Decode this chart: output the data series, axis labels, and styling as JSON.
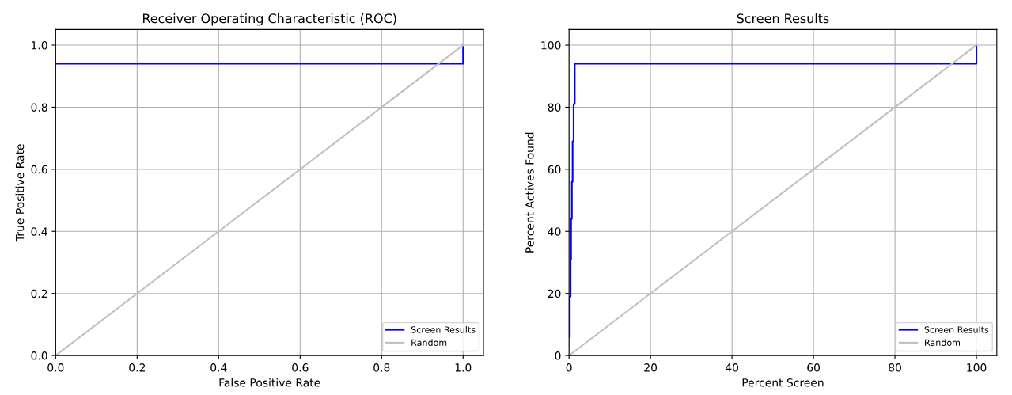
{
  "chart_data": [
    {
      "type": "step",
      "title": "Receiver Operating Characteristic (ROC)",
      "xlabel": "False Positive Rate",
      "ylabel": "True Positive Rate",
      "xlim": [
        0,
        1.05
      ],
      "ylim": [
        0,
        1.05
      ],
      "xticks": [
        {
          "value": 0,
          "label": "0.0"
        },
        0.2,
        0.4,
        0.6,
        0.8,
        {
          "value": 1,
          "label": "1.0"
        }
      ],
      "yticks": [
        {
          "value": 0,
          "label": "0.0"
        },
        0.2,
        0.4,
        0.6,
        0.8,
        {
          "value": 1,
          "label": "1.0"
        }
      ],
      "grid": true,
      "legend": "bottom right",
      "series": [
        {
          "name": "Screen Results",
          "color": "#0000ff",
          "x": [
            0,
            1,
            1
          ],
          "values": [
            0.94,
            0.94,
            1
          ]
        },
        {
          "name": "Random",
          "color": "#c0c0c0",
          "type": "line",
          "x": [
            0,
            1
          ],
          "values": [
            0,
            1
          ]
        }
      ]
    },
    {
      "type": "step",
      "title": "Screen Results",
      "xlabel": "Percent Screen",
      "ylabel": "Percent Actives Found",
      "xlim": [
        0,
        105
      ],
      "ylim": [
        0,
        105
      ],
      "xticks": [
        0,
        20,
        40,
        60,
        80,
        100
      ],
      "yticks": [
        0,
        20,
        40,
        60,
        80,
        100
      ],
      "grid": true,
      "legend": "bottom right",
      "series": [
        {
          "name": "Screen Results",
          "color": "#0000ff",
          "x": [
            0,
            0.19,
            0.19,
            0.38,
            0.38,
            0.5,
            0.5,
            0.7,
            0.7,
            0.88,
            0.88,
            1.13,
            1.13,
            1.4,
            1.4,
            100,
            100
          ],
          "values": [
            6,
            6,
            19,
            19,
            31,
            31,
            44,
            44,
            56,
            56,
            69,
            69,
            81,
            81,
            94,
            94,
            100
          ]
        },
        {
          "name": "Random",
          "color": "#c0c0c0",
          "type": "line",
          "x": [
            0,
            100
          ],
          "values": [
            0,
            100
          ]
        }
      ]
    }
  ]
}
